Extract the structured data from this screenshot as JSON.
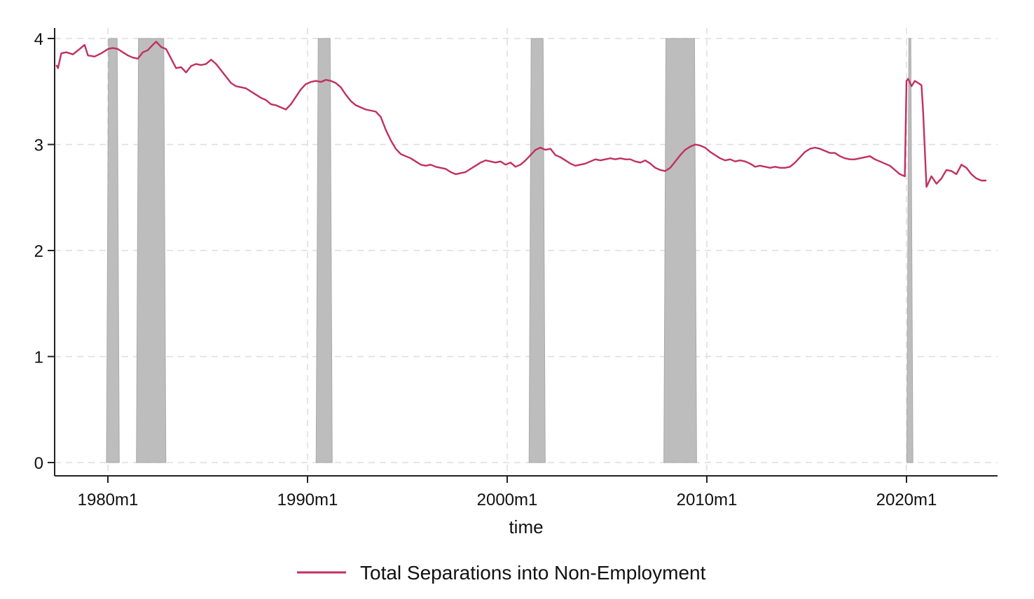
{
  "chart_data": {
    "type": "line",
    "title": "",
    "xlabel": "time",
    "ylabel": "",
    "ylim": [
      0,
      4
    ],
    "xlim": [
      "1977m5",
      "2024m1"
    ],
    "yticks": [
      0,
      1,
      2,
      3,
      4
    ],
    "xticks": [
      "1980m1",
      "1990m1",
      "2000m1",
      "2010m1",
      "2020m1"
    ],
    "grid": true,
    "legend_position": "bottom-center",
    "colors": {
      "series": "#c0305e",
      "recession": "#bdbdbd",
      "grid": "#dddddd",
      "axis": "#222222"
    },
    "recessions": [
      {
        "start": "1980m1",
        "end": "1980m7",
        "top": 4
      },
      {
        "start": "1981m7",
        "end": "1982m11",
        "top": 4
      },
      {
        "start": "1990m7",
        "end": "1991m3",
        "top": 4
      },
      {
        "start": "2001m3",
        "end": "2001m11",
        "top": 4
      },
      {
        "start": "2007m12",
        "end": "2009m6",
        "top": 4
      },
      {
        "start": "2020m2",
        "end": "2020m4",
        "top": 4
      }
    ],
    "series": [
      {
        "name": "Total Separations into Non-Employment",
        "points": [
          [
            "1977m6",
            3.75
          ],
          [
            "1977m7",
            3.72
          ],
          [
            "1977m9",
            3.86
          ],
          [
            "1977m12",
            3.87
          ],
          [
            "1978m4",
            3.85
          ],
          [
            "1978m8",
            3.9
          ],
          [
            "1978m11",
            3.94
          ],
          [
            "1979m1",
            3.84
          ],
          [
            "1979m5",
            3.83
          ],
          [
            "1979m9",
            3.86
          ],
          [
            "1980m1",
            3.9
          ],
          [
            "1980m4",
            3.91
          ],
          [
            "1980m7",
            3.9
          ],
          [
            "1980m10",
            3.87
          ],
          [
            "1981m1",
            3.84
          ],
          [
            "1981m4",
            3.82
          ],
          [
            "1981m7",
            3.81
          ],
          [
            "1981m10",
            3.87
          ],
          [
            "1982m1",
            3.89
          ],
          [
            "1982m4",
            3.94
          ],
          [
            "1982m6",
            3.97
          ],
          [
            "1982m9",
            3.92
          ],
          [
            "1982m12",
            3.9
          ],
          [
            "1983m3",
            3.81
          ],
          [
            "1983m6",
            3.72
          ],
          [
            "1983m9",
            3.73
          ],
          [
            "1983m12",
            3.68
          ],
          [
            "1984m3",
            3.74
          ],
          [
            "1984m6",
            3.76
          ],
          [
            "1984m9",
            3.75
          ],
          [
            "1984m12",
            3.76
          ],
          [
            "1985m3",
            3.8
          ],
          [
            "1985m6",
            3.76
          ],
          [
            "1985m9",
            3.7
          ],
          [
            "1985m12",
            3.64
          ],
          [
            "1986m3",
            3.58
          ],
          [
            "1986m6",
            3.55
          ],
          [
            "1986m9",
            3.54
          ],
          [
            "1986m12",
            3.53
          ],
          [
            "1987m3",
            3.5
          ],
          [
            "1987m6",
            3.47
          ],
          [
            "1987m9",
            3.44
          ],
          [
            "1987m12",
            3.42
          ],
          [
            "1988m3",
            3.38
          ],
          [
            "1988m6",
            3.37
          ],
          [
            "1988m9",
            3.35
          ],
          [
            "1988m12",
            3.33
          ],
          [
            "1989m3",
            3.38
          ],
          [
            "1989m6",
            3.45
          ],
          [
            "1989m9",
            3.52
          ],
          [
            "1989m12",
            3.57
          ],
          [
            "1990m3",
            3.59
          ],
          [
            "1990m6",
            3.6
          ],
          [
            "1990m9",
            3.59
          ],
          [
            "1990m12",
            3.61
          ],
          [
            "1991m3",
            3.6
          ],
          [
            "1991m6",
            3.58
          ],
          [
            "1991m9",
            3.54
          ],
          [
            "1991m12",
            3.47
          ],
          [
            "1992m3",
            3.41
          ],
          [
            "1992m6",
            3.37
          ],
          [
            "1992m9",
            3.35
          ],
          [
            "1992m12",
            3.33
          ],
          [
            "1993m3",
            3.32
          ],
          [
            "1993m6",
            3.31
          ],
          [
            "1993m9",
            3.26
          ],
          [
            "1993m12",
            3.14
          ],
          [
            "1994m3",
            3.04
          ],
          [
            "1994m6",
            2.96
          ],
          [
            "1994m9",
            2.91
          ],
          [
            "1994m12",
            2.89
          ],
          [
            "1995m3",
            2.87
          ],
          [
            "1995m6",
            2.84
          ],
          [
            "1995m9",
            2.81
          ],
          [
            "1995m12",
            2.8
          ],
          [
            "1996m3",
            2.81
          ],
          [
            "1996m6",
            2.79
          ],
          [
            "1996m9",
            2.78
          ],
          [
            "1996m12",
            2.77
          ],
          [
            "1997m3",
            2.74
          ],
          [
            "1997m6",
            2.72
          ],
          [
            "1997m9",
            2.73
          ],
          [
            "1997m12",
            2.74
          ],
          [
            "1998m3",
            2.77
          ],
          [
            "1998m6",
            2.8
          ],
          [
            "1998m9",
            2.83
          ],
          [
            "1998m12",
            2.85
          ],
          [
            "1999m3",
            2.84
          ],
          [
            "1999m6",
            2.83
          ],
          [
            "1999m9",
            2.84
          ],
          [
            "1999m12",
            2.81
          ],
          [
            "2000m3",
            2.83
          ],
          [
            "2000m6",
            2.79
          ],
          [
            "2000m9",
            2.81
          ],
          [
            "2000m12",
            2.85
          ],
          [
            "2001m3",
            2.9
          ],
          [
            "2001m6",
            2.95
          ],
          [
            "2001m9",
            2.97
          ],
          [
            "2001m12",
            2.95
          ],
          [
            "2002m3",
            2.96
          ],
          [
            "2002m6",
            2.9
          ],
          [
            "2002m9",
            2.88
          ],
          [
            "2002m12",
            2.85
          ],
          [
            "2003m3",
            2.82
          ],
          [
            "2003m6",
            2.8
          ],
          [
            "2003m9",
            2.81
          ],
          [
            "2003m12",
            2.82
          ],
          [
            "2004m3",
            2.84
          ],
          [
            "2004m6",
            2.86
          ],
          [
            "2004m9",
            2.85
          ],
          [
            "2004m12",
            2.86
          ],
          [
            "2005m3",
            2.87
          ],
          [
            "2005m6",
            2.86
          ],
          [
            "2005m9",
            2.87
          ],
          [
            "2005m12",
            2.86
          ],
          [
            "2006m3",
            2.86
          ],
          [
            "2006m6",
            2.84
          ],
          [
            "2006m9",
            2.83
          ],
          [
            "2006m12",
            2.85
          ],
          [
            "2007m3",
            2.82
          ],
          [
            "2007m6",
            2.78
          ],
          [
            "2007m9",
            2.76
          ],
          [
            "2007m12",
            2.75
          ],
          [
            "2008m3",
            2.78
          ],
          [
            "2008m6",
            2.84
          ],
          [
            "2008m9",
            2.9
          ],
          [
            "2008m12",
            2.95
          ],
          [
            "2009m3",
            2.98
          ],
          [
            "2009m6",
            3.0
          ],
          [
            "2009m9",
            2.99
          ],
          [
            "2009m12",
            2.97
          ],
          [
            "2010m3",
            2.93
          ],
          [
            "2010m6",
            2.9
          ],
          [
            "2010m9",
            2.87
          ],
          [
            "2010m12",
            2.85
          ],
          [
            "2011m3",
            2.86
          ],
          [
            "2011m6",
            2.84
          ],
          [
            "2011m9",
            2.85
          ],
          [
            "2011m12",
            2.84
          ],
          [
            "2012m3",
            2.82
          ],
          [
            "2012m6",
            2.79
          ],
          [
            "2012m9",
            2.8
          ],
          [
            "2012m12",
            2.79
          ],
          [
            "2013m3",
            2.78
          ],
          [
            "2013m6",
            2.79
          ],
          [
            "2013m9",
            2.78
          ],
          [
            "2013m12",
            2.78
          ],
          [
            "2014m3",
            2.79
          ],
          [
            "2014m6",
            2.83
          ],
          [
            "2014m9",
            2.88
          ],
          [
            "2014m12",
            2.93
          ],
          [
            "2015m3",
            2.96
          ],
          [
            "2015m6",
            2.97
          ],
          [
            "2015m9",
            2.96
          ],
          [
            "2015m12",
            2.94
          ],
          [
            "2016m3",
            2.92
          ],
          [
            "2016m6",
            2.92
          ],
          [
            "2016m9",
            2.89
          ],
          [
            "2016m12",
            2.87
          ],
          [
            "2017m3",
            2.86
          ],
          [
            "2017m6",
            2.86
          ],
          [
            "2017m9",
            2.87
          ],
          [
            "2017m12",
            2.88
          ],
          [
            "2018m3",
            2.89
          ],
          [
            "2018m6",
            2.86
          ],
          [
            "2018m9",
            2.84
          ],
          [
            "2018m12",
            2.82
          ],
          [
            "2019m3",
            2.8
          ],
          [
            "2019m6",
            2.76
          ],
          [
            "2019m9",
            2.72
          ],
          [
            "2019m12",
            2.7
          ],
          [
            "2020m1",
            3.6
          ],
          [
            "2020m2",
            3.62
          ],
          [
            "2020m4",
            3.55
          ],
          [
            "2020m6",
            3.6
          ],
          [
            "2020m8",
            3.58
          ],
          [
            "2020m10",
            3.56
          ],
          [
            "2020m11",
            3.3
          ],
          [
            "2021m1",
            2.6
          ],
          [
            "2021m4",
            2.7
          ],
          [
            "2021m7",
            2.63
          ],
          [
            "2021m10",
            2.68
          ],
          [
            "2022m1",
            2.76
          ],
          [
            "2022m4",
            2.75
          ],
          [
            "2022m7",
            2.72
          ],
          [
            "2022m10",
            2.81
          ],
          [
            "2023m1",
            2.78
          ],
          [
            "2023m4",
            2.72
          ],
          [
            "2023m7",
            2.68
          ],
          [
            "2023m10",
            2.66
          ],
          [
            "2024m1",
            2.66
          ]
        ]
      }
    ]
  }
}
